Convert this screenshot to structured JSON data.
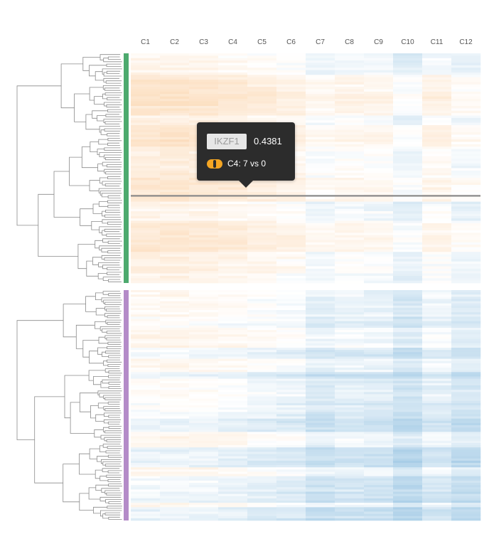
{
  "chart_data": {
    "type": "heatmap",
    "columns": [
      "C1",
      "C2",
      "C3",
      "C4",
      "C5",
      "C6",
      "C7",
      "C8",
      "C9",
      "C10",
      "C11",
      "C12"
    ],
    "groups": [
      {
        "color": "#4daa6e",
        "rows": 96,
        "tint": 0.3
      },
      {
        "color": "#b48bc8",
        "rows": 104,
        "tint": -0.45
      }
    ],
    "column_bias": [
      0.42,
      0.45,
      0.4,
      0.3,
      0.18,
      0.08,
      -0.22,
      -0.1,
      -0.15,
      -0.45,
      -0.05,
      -0.32
    ],
    "color_positive": "#f7a24a",
    "color_negative": "#3b8fc9",
    "highlighted_row_group": 0,
    "highlighted_row_fraction": 0.62,
    "highlight_color": "#888888"
  },
  "tooltip": {
    "gene": "IKZF1",
    "score": "0.4381",
    "comparison": "C4: 7 vs 0",
    "icon": "toggle-icon",
    "icon_color": "#f5a623"
  }
}
